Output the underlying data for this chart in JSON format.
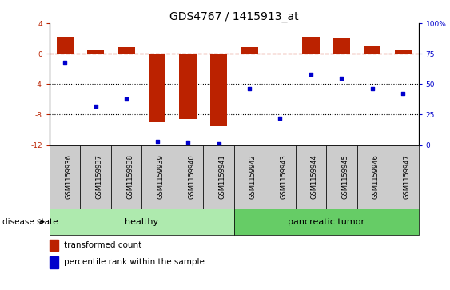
{
  "title": "GDS4767 / 1415913_at",
  "samples": [
    "GSM1159936",
    "GSM1159937",
    "GSM1159938",
    "GSM1159939",
    "GSM1159940",
    "GSM1159941",
    "GSM1159942",
    "GSM1159943",
    "GSM1159944",
    "GSM1159945",
    "GSM1159946",
    "GSM1159947"
  ],
  "bar_values": [
    2.2,
    0.5,
    0.9,
    -9.0,
    -8.6,
    -9.5,
    0.9,
    -0.1,
    2.2,
    2.1,
    1.1,
    0.5
  ],
  "scatter_values": [
    68,
    32,
    38,
    3,
    2,
    1,
    46,
    22,
    58,
    55,
    46,
    42
  ],
  "groups": [
    {
      "label": "healthy",
      "start": 0,
      "end": 6,
      "color": "#aeeaae"
    },
    {
      "label": "pancreatic tumor",
      "start": 6,
      "end": 12,
      "color": "#66cc66"
    }
  ],
  "ylim_left": [
    -12,
    4
  ],
  "ylim_right": [
    0,
    100
  ],
  "yticks_left": [
    4,
    0,
    -4,
    -8,
    -12
  ],
  "yticks_right": [
    100,
    75,
    50,
    25,
    0
  ],
  "bar_color": "#bb2200",
  "scatter_color": "#0000cc",
  "dashed_line_color": "#cc2200",
  "grid_color": "#000000",
  "bg_color": "#ffffff",
  "disease_state_label": "disease state",
  "legend_bar_label": "transformed count",
  "legend_scatter_label": "percentile rank within the sample",
  "title_fontsize": 10,
  "tick_fontsize": 6.5,
  "label_fontsize": 8,
  "group_label_fontsize": 8,
  "sample_box_color": "#cccccc",
  "sample_text_fontsize": 6
}
